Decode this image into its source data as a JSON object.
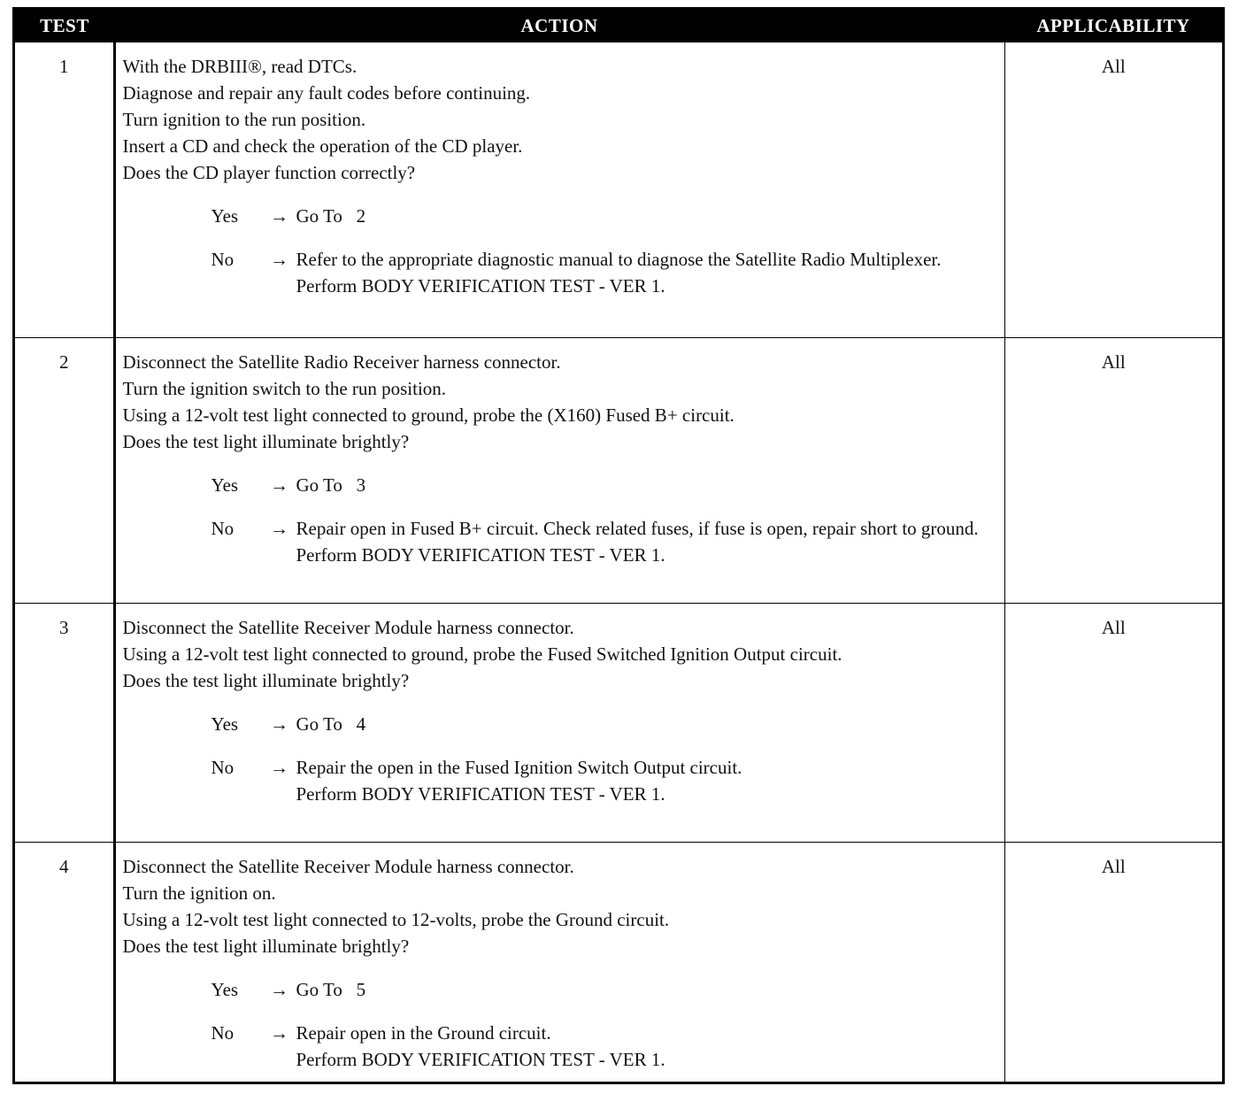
{
  "headers": {
    "test": "TEST",
    "action": "ACTION",
    "applicability": "APPLICABILITY"
  },
  "rows": [
    {
      "test": "1",
      "applicability": "All",
      "steps": [
        "With the DRBIII®, read DTCs.",
        "Diagnose and repair any fault codes before continuing.",
        "Turn ignition to the run position.",
        "Insert a CD and check the operation of the CD player.",
        "Does the CD player function correctly?"
      ],
      "yes": {
        "label": "Yes",
        "arrow": "→",
        "lines": [
          "Go To   2"
        ]
      },
      "no": {
        "label": "No",
        "arrow": "→",
        "lines": [
          "Refer to the appropriate diagnostic manual to diagnose the Satellite Radio Multiplexer.",
          "Perform BODY VERIFICATION TEST - VER 1."
        ]
      }
    },
    {
      "test": "2",
      "applicability": "All",
      "steps": [
        "Disconnect the Satellite Radio Receiver harness connector.",
        "Turn the ignition switch to the run position.",
        "Using a 12-volt test light connected to ground, probe the (X160) Fused B+ circuit.",
        "Does the test light illuminate brightly?"
      ],
      "yes": {
        "label": "Yes",
        "arrow": "→",
        "lines": [
          "Go To   3"
        ]
      },
      "no": {
        "label": "No",
        "arrow": "→",
        "lines": [
          "Repair open in Fused B+ circuit. Check related fuses, if fuse is open, repair short to ground.",
          "Perform BODY VERIFICATION TEST - VER 1."
        ]
      }
    },
    {
      "test": "3",
      "applicability": "All",
      "steps": [
        "Disconnect the Satellite Receiver Module harness connector.",
        "Using a 12-volt test light connected to ground, probe the Fused Switched Ignition Output circuit.",
        "Does the test light illuminate brightly?"
      ],
      "yes": {
        "label": "Yes",
        "arrow": "→",
        "lines": [
          "Go To   4"
        ]
      },
      "no": {
        "label": "No",
        "arrow": "→",
        "lines": [
          "Repair the open in the Fused Ignition Switch Output circuit.",
          "Perform BODY VERIFICATION TEST - VER 1."
        ]
      }
    },
    {
      "test": "4",
      "applicability": "All",
      "steps": [
        "Disconnect the Satellite Receiver Module harness connector.",
        "Turn the ignition on.",
        "Using a 12-volt test light connected to 12-volts, probe the Ground circuit.",
        "Does the test light illuminate brightly?"
      ],
      "yes": {
        "label": "Yes",
        "arrow": "→",
        "lines": [
          "Go To   5"
        ]
      },
      "no": {
        "label": "No",
        "arrow": "→",
        "lines": [
          "Repair open in the Ground circuit.",
          "Perform BODY VERIFICATION TEST - VER 1."
        ]
      }
    }
  ]
}
